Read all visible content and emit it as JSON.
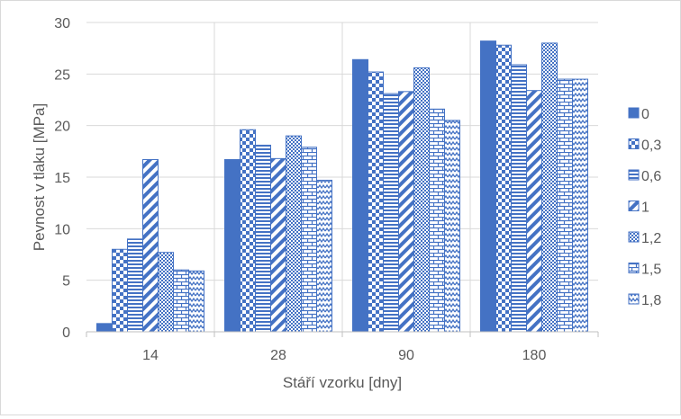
{
  "chart_data": {
    "type": "bar",
    "xlabel": "Stáří vzorku [dny]",
    "ylabel": "Pevnost v tlaku [MPa]",
    "ylim": [
      0,
      30
    ],
    "yticks": [
      0,
      5,
      10,
      15,
      20,
      25,
      30
    ],
    "grid": true,
    "legend_position": "right",
    "categories": [
      "14",
      "28",
      "90",
      "180"
    ],
    "series": [
      {
        "name": "0",
        "pattern": "solid",
        "values": [
          0.8,
          16.7,
          26.4,
          28.2
        ]
      },
      {
        "name": "0,3",
        "pattern": "checker",
        "values": [
          8.0,
          19.6,
          25.2,
          27.8
        ]
      },
      {
        "name": "0,6",
        "pattern": "horiz-lines",
        "values": [
          9.0,
          18.1,
          23.1,
          25.9
        ]
      },
      {
        "name": "1",
        "pattern": "diag-lines",
        "values": [
          16.7,
          16.8,
          23.3,
          23.4
        ]
      },
      {
        "name": "1,2",
        "pattern": "fine-grid",
        "values": [
          7.7,
          19.0,
          25.6,
          28.0
        ]
      },
      {
        "name": "1,5",
        "pattern": "brick",
        "values": [
          6.0,
          17.9,
          21.6,
          24.5
        ]
      },
      {
        "name": "1,8",
        "pattern": "zigzag",
        "values": [
          5.9,
          14.7,
          20.5,
          24.5
        ]
      }
    ],
    "colors": {
      "bar": "#4472c4",
      "grid": "#d9d9d9",
      "axis": "#bfbfbf",
      "text": "#595959"
    }
  }
}
